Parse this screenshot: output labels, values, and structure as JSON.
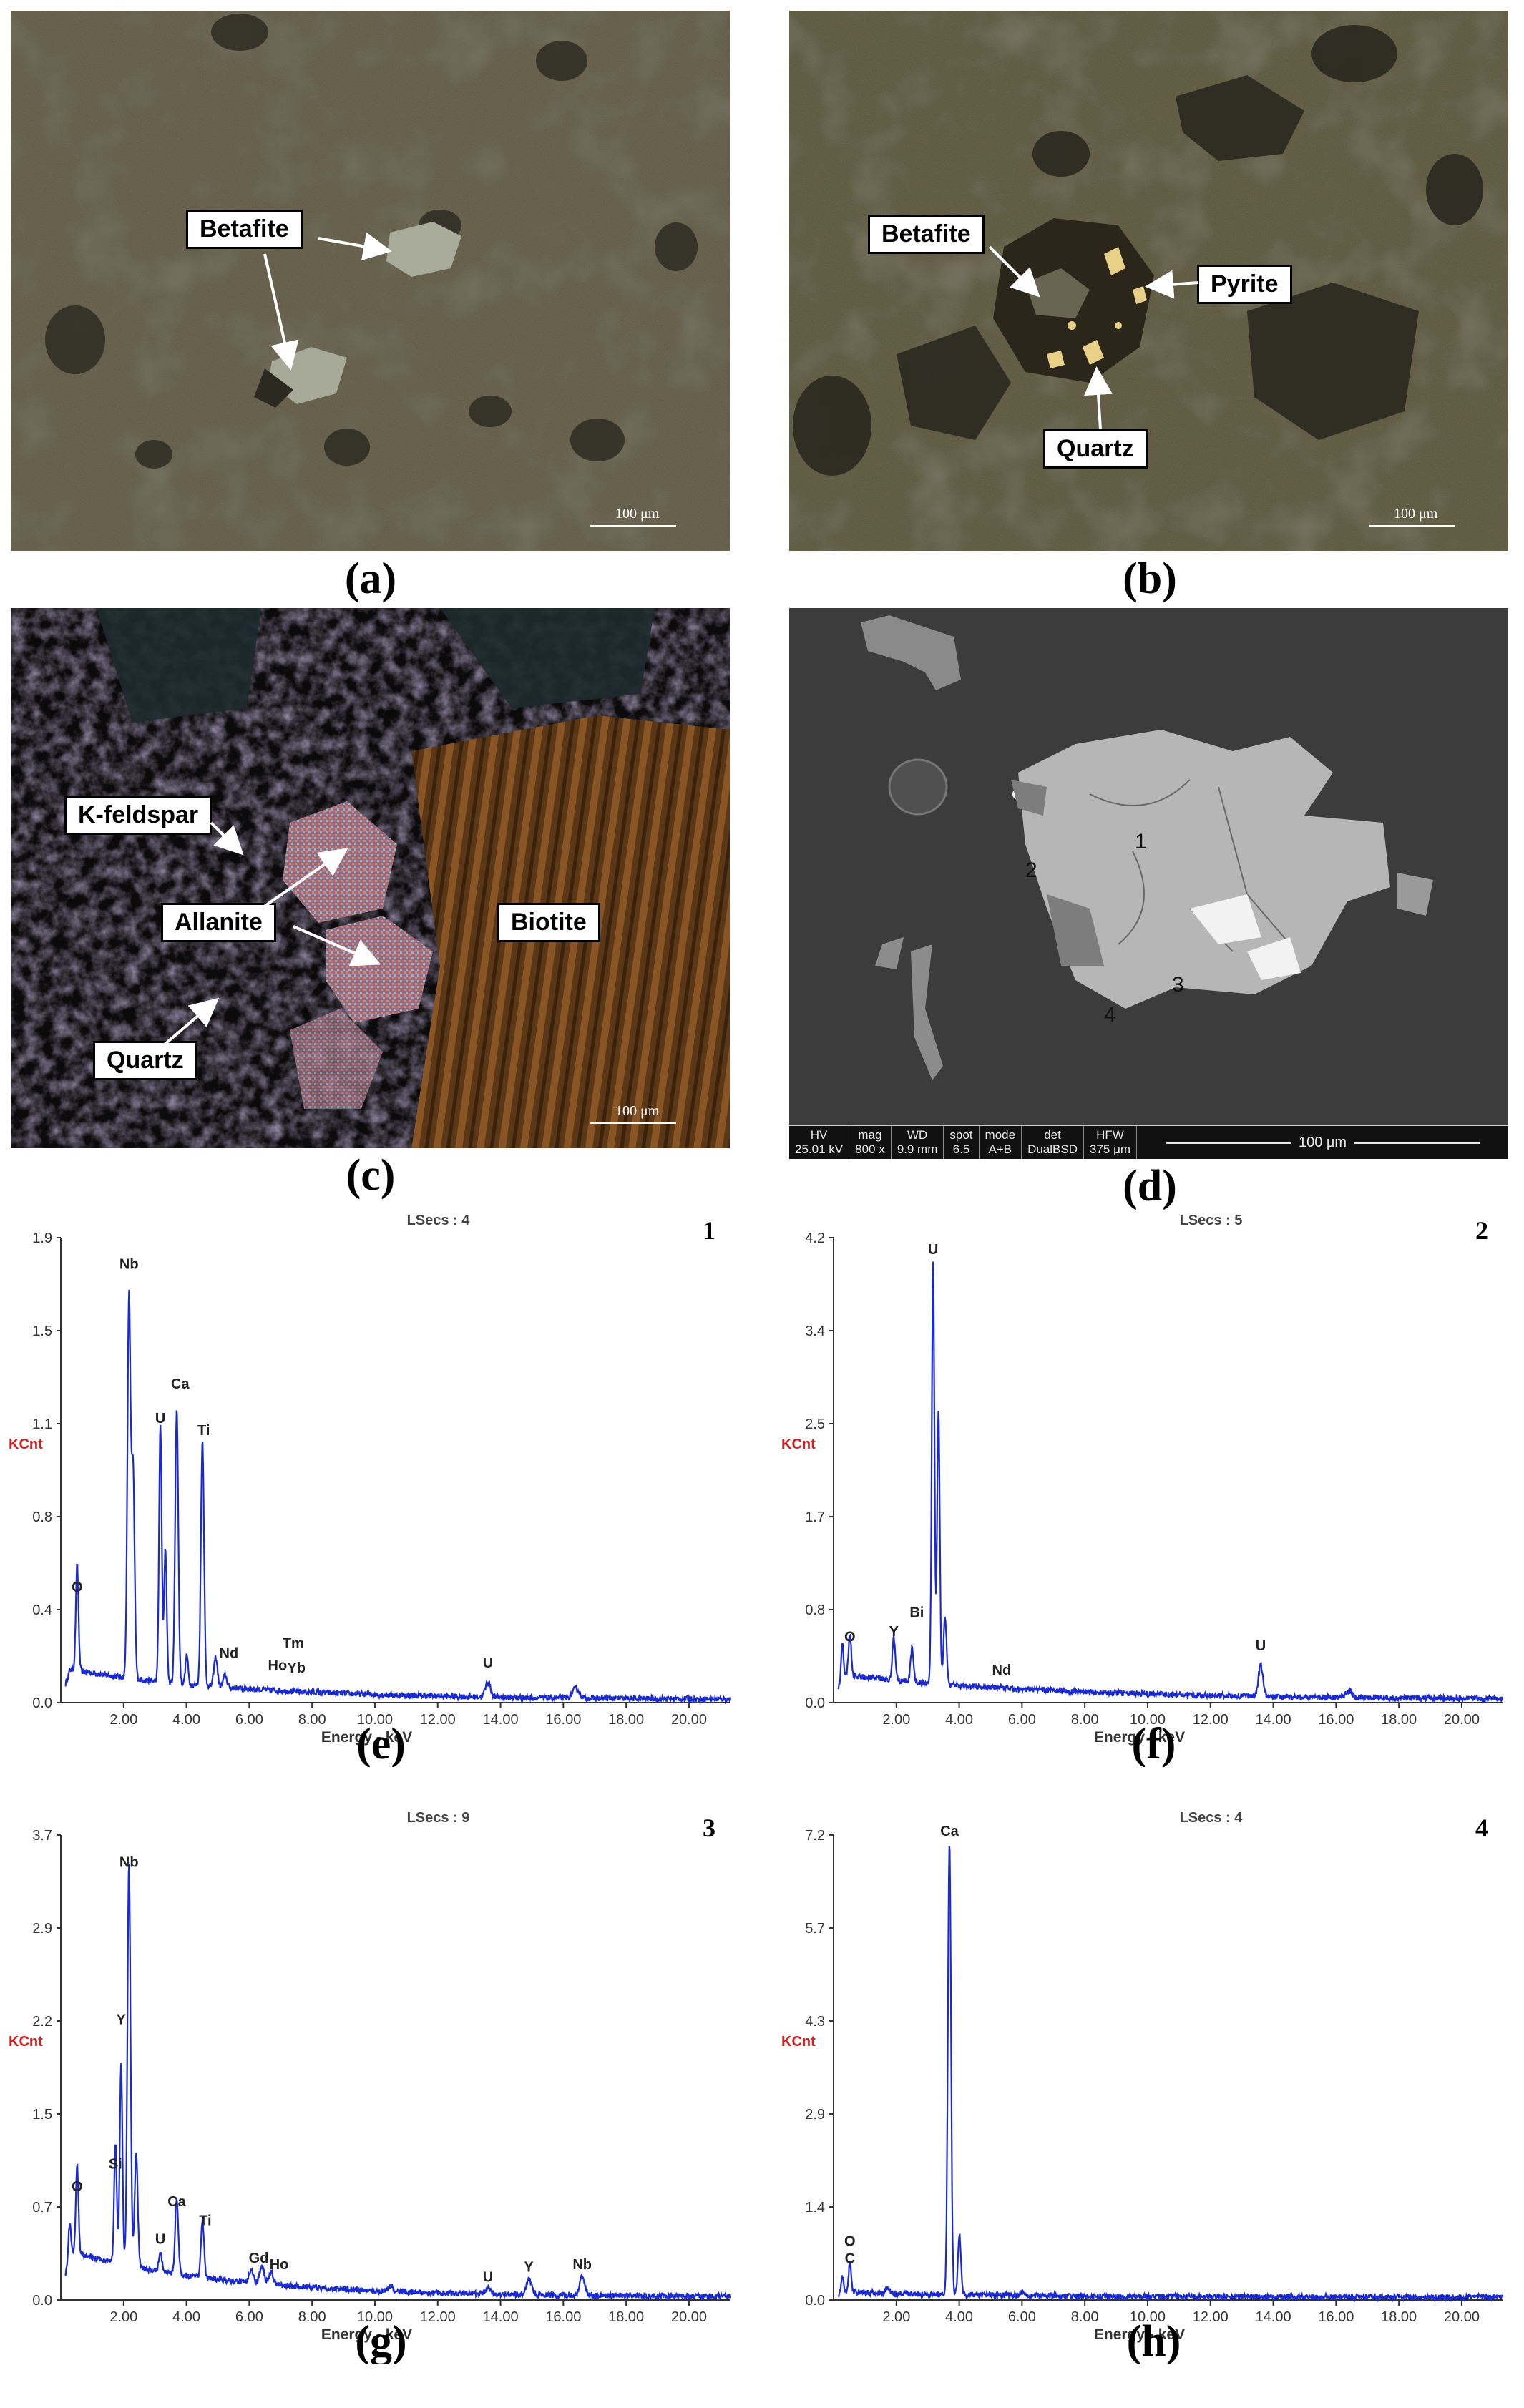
{
  "micrographs": {
    "a": {
      "caption": "(a)",
      "labels": [
        "Betafite"
      ],
      "scale": "100 μm"
    },
    "b": {
      "caption": "(b)",
      "labels": [
        "Betafite",
        "Pyrite",
        "Quartz"
      ],
      "scale": "100 μm"
    },
    "c": {
      "caption": "(c)",
      "labels": [
        "K-feldspar",
        "Allanite",
        "Biotite",
        "Quartz"
      ],
      "scale": "100 μm"
    },
    "d": {
      "caption": "(d)",
      "points": [
        "1",
        "2",
        "3",
        "4"
      ],
      "databar": {
        "headers": [
          "HV",
          "mag",
          "WD",
          "spot",
          "mode",
          "det",
          "HFW"
        ],
        "values": [
          "25.01 kV",
          "800 x",
          "9.9 mm",
          "6.5",
          "A+B",
          "DualBSD",
          "375 μm"
        ],
        "scale": "100 μm"
      }
    }
  },
  "spectra_common": {
    "xlabel": "Energy - keV",
    "ylabel": "KCnt",
    "xticks": [
      "2.00",
      "4.00",
      "6.00",
      "8.00",
      "10.00",
      "12.00",
      "14.00",
      "16.00",
      "18.00",
      "20.00"
    ]
  },
  "chart_data": [
    {
      "id": "e",
      "type": "line",
      "caption": "(e)",
      "number": "1",
      "lsecs": "LSecs : 4",
      "xlabel": "Energy - keV",
      "ylabel": "KCnt",
      "xlim": [
        0,
        21.3
      ],
      "ylim": [
        0,
        1.9
      ],
      "yticks": [
        "0.0",
        "0.4",
        "0.8",
        "1.1",
        "1.5",
        "1.9"
      ],
      "peaks": [
        {
          "x": 0.52,
          "y": 0.43,
          "w": 0.06
        },
        {
          "x": 2.17,
          "y": 1.55,
          "w": 0.07
        },
        {
          "x": 2.3,
          "y": 0.85,
          "w": 0.07
        },
        {
          "x": 3.17,
          "y": 1.05,
          "w": 0.06
        },
        {
          "x": 3.33,
          "y": 0.55,
          "w": 0.06
        },
        {
          "x": 3.69,
          "y": 1.12,
          "w": 0.07
        },
        {
          "x": 4.01,
          "y": 0.12,
          "w": 0.06
        },
        {
          "x": 4.51,
          "y": 1.0,
          "w": 0.07
        },
        {
          "x": 4.93,
          "y": 0.12,
          "w": 0.08
        },
        {
          "x": 5.23,
          "y": 0.05,
          "w": 0.08
        },
        {
          "x": 13.6,
          "y": 0.06,
          "w": 0.12
        },
        {
          "x": 16.4,
          "y": 0.04,
          "w": 0.15
        }
      ],
      "background": {
        "amp": 0.12,
        "decay": 0.18
      },
      "peak_labels": [
        {
          "text": "O",
          "x": 0.52,
          "y": 0.43
        },
        {
          "text": "Nb",
          "x": 2.17,
          "y": 1.75
        },
        {
          "text": "U",
          "x": 3.17,
          "y": 1.12
        },
        {
          "text": "Ca",
          "x": 3.8,
          "y": 1.26
        },
        {
          "text": "Ti",
          "x": 4.55,
          "y": 1.07
        },
        {
          "text": "Nd",
          "x": 5.35,
          "y": 0.16
        },
        {
          "text": "Tm",
          "x": 7.4,
          "y": 0.2
        },
        {
          "text": "Ho",
          "x": 6.9,
          "y": 0.11
        },
        {
          "text": "Yb",
          "x": 7.5,
          "y": 0.1
        },
        {
          "text": "U",
          "x": 13.6,
          "y": 0.12
        }
      ]
    },
    {
      "id": "f",
      "type": "line",
      "caption": "(f)",
      "number": "2",
      "lsecs": "LSecs : 5",
      "xlabel": "Energy - keV",
      "ylabel": "KCnt",
      "xlim": [
        0,
        21.3
      ],
      "ylim": [
        0,
        4.2
      ],
      "yticks": [
        "0.0",
        "0.8",
        "1.7",
        "2.5",
        "3.4",
        "4.2"
      ],
      "peaks": [
        {
          "x": 0.28,
          "y": 0.3,
          "w": 0.05
        },
        {
          "x": 0.52,
          "y": 0.38,
          "w": 0.06
        },
        {
          "x": 1.92,
          "y": 0.38,
          "w": 0.07
        },
        {
          "x": 2.5,
          "y": 0.3,
          "w": 0.07
        },
        {
          "x": 3.17,
          "y": 3.8,
          "w": 0.06
        },
        {
          "x": 3.34,
          "y": 2.45,
          "w": 0.06
        },
        {
          "x": 3.55,
          "y": 0.6,
          "w": 0.07
        },
        {
          "x": 13.6,
          "y": 0.28,
          "w": 0.1
        },
        {
          "x": 16.4,
          "y": 0.06,
          "w": 0.15
        }
      ],
      "background": {
        "amp": 0.22,
        "decay": 0.15
      },
      "peak_labels": [
        {
          "text": "O",
          "x": 0.52,
          "y": 0.5
        },
        {
          "text": "Y",
          "x": 1.92,
          "y": 0.55
        },
        {
          "text": "Bi",
          "x": 2.65,
          "y": 0.72
        },
        {
          "text": "U",
          "x": 3.17,
          "y": 4.0
        },
        {
          "text": "Nd",
          "x": 5.35,
          "y": 0.2
        },
        {
          "text": "U",
          "x": 13.6,
          "y": 0.42
        }
      ]
    },
    {
      "id": "g",
      "type": "line",
      "caption": "(g)",
      "number": "3",
      "lsecs": "LSecs : 9",
      "xlabel": "Energy - keV",
      "ylabel": "KCnt",
      "xlim": [
        0,
        21.3
      ],
      "ylim": [
        0,
        3.7
      ],
      "yticks": [
        "0.0",
        "0.7",
        "1.5",
        "2.2",
        "2.9",
        "3.7"
      ],
      "peaks": [
        {
          "x": 0.28,
          "y": 0.25,
          "w": 0.05
        },
        {
          "x": 0.52,
          "y": 0.7,
          "w": 0.06
        },
        {
          "x": 1.74,
          "y": 0.95,
          "w": 0.06
        },
        {
          "x": 1.92,
          "y": 1.6,
          "w": 0.06
        },
        {
          "x": 2.17,
          "y": 3.2,
          "w": 0.07
        },
        {
          "x": 2.4,
          "y": 0.9,
          "w": 0.07
        },
        {
          "x": 3.17,
          "y": 0.15,
          "w": 0.07
        },
        {
          "x": 3.69,
          "y": 0.6,
          "w": 0.07
        },
        {
          "x": 4.51,
          "y": 0.45,
          "w": 0.07
        },
        {
          "x": 6.05,
          "y": 0.1,
          "w": 0.1
        },
        {
          "x": 6.4,
          "y": 0.14,
          "w": 0.1
        },
        {
          "x": 6.7,
          "y": 0.1,
          "w": 0.1
        },
        {
          "x": 10.5,
          "y": 0.04,
          "w": 0.1
        },
        {
          "x": 13.6,
          "y": 0.05,
          "w": 0.12
        },
        {
          "x": 14.9,
          "y": 0.12,
          "w": 0.12
        },
        {
          "x": 16.6,
          "y": 0.15,
          "w": 0.12
        }
      ],
      "background": {
        "amp": 0.35,
        "decay": 0.2
      },
      "peak_labels": [
        {
          "text": "O",
          "x": 0.52,
          "y": 0.82
        },
        {
          "text": "Si",
          "x": 1.74,
          "y": 1.0
        },
        {
          "text": "Nb",
          "x": 2.17,
          "y": 3.4
        },
        {
          "text": "Y",
          "x": 1.92,
          "y": 2.15
        },
        {
          "text": "U",
          "x": 3.17,
          "y": 0.4
        },
        {
          "text": "Ca",
          "x": 3.69,
          "y": 0.7
        },
        {
          "text": "Ti",
          "x": 4.6,
          "y": 0.55
        },
        {
          "text": "Gd",
          "x": 6.3,
          "y": 0.25
        },
        {
          "text": "Ho",
          "x": 6.95,
          "y": 0.2
        },
        {
          "text": "U",
          "x": 13.6,
          "y": 0.1
        },
        {
          "text": "Y",
          "x": 14.9,
          "y": 0.18
        },
        {
          "text": "Nb",
          "x": 16.6,
          "y": 0.2
        }
      ]
    },
    {
      "id": "h",
      "type": "line",
      "caption": "(h)",
      "number": "4",
      "lsecs": "LSecs : 4",
      "xlabel": "Energy - keV",
      "ylabel": "KCnt",
      "xlim": [
        0,
        21.3
      ],
      "ylim": [
        0,
        7.2
      ],
      "yticks": [
        "0.0",
        "1.4",
        "2.9",
        "4.3",
        "5.7",
        "7.2"
      ],
      "peaks": [
        {
          "x": 0.28,
          "y": 0.25,
          "w": 0.05
        },
        {
          "x": 0.52,
          "y": 0.45,
          "w": 0.06
        },
        {
          "x": 1.74,
          "y": 0.08,
          "w": 0.08
        },
        {
          "x": 3.69,
          "y": 7.0,
          "w": 0.07
        },
        {
          "x": 4.01,
          "y": 0.9,
          "w": 0.07
        },
        {
          "x": 6.0,
          "y": 0.05,
          "w": 0.1
        }
      ],
      "background": {
        "amp": 0.08,
        "decay": 0.2
      },
      "peak_labels": [
        {
          "text": "O",
          "x": 0.52,
          "y": 0.75
        },
        {
          "text": "C",
          "x": 0.52,
          "y": 0.48
        },
        {
          "text": "Ca",
          "x": 3.69,
          "y": 7.1
        }
      ]
    }
  ]
}
